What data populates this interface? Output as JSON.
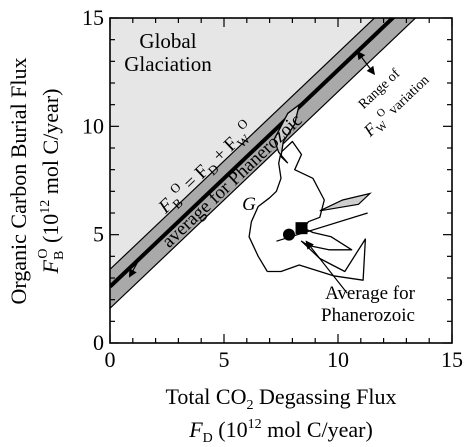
{
  "chart_data": {
    "type": "line",
    "x_axis": {
      "label_line1": "Total CO",
      "label_line1_sub": "2",
      "label_line1_rest": " Degassing Flux",
      "label_line2_var": "F",
      "label_line2_sub": "D",
      "label_line2_rest": " (10",
      "label_line2_sup": "12",
      "label_line2_end": " mol C/year)",
      "range": [
        0,
        15
      ],
      "ticks": [
        0,
        5,
        10,
        15
      ]
    },
    "y_axis": {
      "label_line1": "Organic Carbon Burial Flux",
      "label_line2_var": "F",
      "label_line2_sub": "B",
      "label_line2_sup": "O",
      "label_line2_rest": " (10",
      "label_line2_sup2": "12",
      "label_line2_end": " mol C/year)",
      "range": [
        0,
        15
      ],
      "ticks": [
        0,
        5,
        10,
        15
      ]
    },
    "band": {
      "fw_average": 2.6,
      "fw_min": 1.6,
      "fw_max": 3.4
    },
    "trajectory": [
      [
        6.9,
        3.3
      ],
      [
        6.5,
        4.0
      ],
      [
        6.1,
        4.9
      ],
      [
        6.2,
        5.6
      ],
      [
        6.5,
        6.3
      ],
      [
        7.0,
        6.7
      ],
      [
        7.3,
        7.0
      ],
      [
        7.5,
        7.6
      ],
      [
        7.4,
        8.3
      ],
      [
        7.5,
        8.8
      ],
      [
        8.0,
        9.3
      ],
      [
        8.4,
        8.7
      ],
      [
        8.1,
        8.0
      ],
      [
        8.9,
        7.6
      ],
      [
        9.4,
        6.6
      ],
      [
        9.2,
        5.8
      ],
      [
        8.7,
        5.6
      ],
      [
        8.5,
        5.3
      ],
      [
        8.9,
        5.1
      ],
      [
        9.7,
        4.9
      ],
      [
        10.6,
        4.3
      ],
      [
        9.6,
        4.3
      ],
      [
        8.7,
        4.5
      ],
      [
        8.4,
        4.7
      ],
      [
        9.2,
        3.9
      ],
      [
        10.3,
        3.3
      ],
      [
        11.2,
        4.8
      ],
      [
        11.1,
        2.9
      ],
      [
        9.8,
        3.1
      ],
      [
        8.3,
        3.6
      ],
      [
        7.5,
        3.3
      ],
      [
        6.9,
        3.3
      ]
    ],
    "upper_loop": [
      [
        7.8,
        10.6
      ],
      [
        8.3,
        11.0
      ],
      [
        8.1,
        10.1
      ],
      [
        7.6,
        9.3
      ],
      [
        7.5,
        8.6
      ],
      [
        7.8,
        8.3
      ],
      [
        7.4,
        8.8
      ],
      [
        7.2,
        9.4
      ],
      [
        7.5,
        10.0
      ],
      [
        7.8,
        10.6
      ]
    ],
    "right_spur": [
      [
        9.2,
        6.1
      ],
      [
        10.2,
        6.6
      ],
      [
        11.4,
        6.9
      ],
      [
        10.9,
        6.4
      ],
      [
        9.2,
        6.1
      ]
    ],
    "average_line": {
      "from": [
        7.3,
        4.7
      ],
      "to": [
        11.3,
        6.0
      ]
    },
    "points": {
      "circle": {
        "x": 7.85,
        "y": 5.0
      },
      "square": {
        "x": 8.4,
        "y": 5.3
      }
    },
    "annotations": {
      "global_glaciation": [
        "Global",
        "Glaciation"
      ],
      "eq_var": "F",
      "eq_sub_b": "B",
      "eq_sup_o": "O",
      "eq_mid": " = F",
      "eq_sub_d": "D",
      "eq_plus": " + F",
      "eq_sub_w": "W",
      "eq_sup_o2": "O",
      "avg_line_label": "average for Phanerozoic",
      "range_line1": "Range of",
      "range_var": "F",
      "range_sub": "W",
      "range_sup": "O",
      "range_rest": " variation",
      "g_label": "G",
      "average_label": [
        "Average for",
        "Phanerozoic"
      ]
    }
  }
}
